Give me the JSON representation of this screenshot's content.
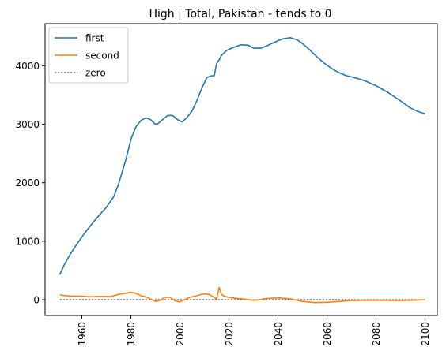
{
  "chart_data": {
    "type": "line",
    "title": "High | Total, Pakistan  - tends to 0",
    "xlabel": "",
    "ylabel": "",
    "xlim": [
      1945,
      2105
    ],
    "ylim": [
      -270,
      4720
    ],
    "x_ticks": [
      1960,
      1980,
      2000,
      2020,
      2040,
      2060,
      2080,
      2100
    ],
    "y_ticks": [
      0,
      1000,
      2000,
      3000,
      4000
    ],
    "grid": false,
    "legend_position": "top-left",
    "series": [
      {
        "name": "first",
        "color": "#1f77b4",
        "style": "solid",
        "x": [
          1951,
          1953,
          1955,
          1958,
          1961,
          1964,
          1967,
          1970,
          1973,
          1975,
          1978,
          1980,
          1982,
          1984,
          1986,
          1988,
          1990,
          1991,
          1993,
          1995,
          1997,
          1999,
          2001,
          2003,
          2005,
          2007,
          2009,
          2011,
          2013,
          2014,
          2015,
          2016,
          2017,
          2019,
          2021,
          2023,
          2025,
          2028,
          2030,
          2033,
          2036,
          2039,
          2042,
          2045,
          2048,
          2050,
          2053,
          2056,
          2059,
          2062,
          2065,
          2068,
          2071,
          2075,
          2080,
          2085,
          2090,
          2094,
          2097,
          2100
        ],
        "values": [
          430,
          610,
          760,
          950,
          1130,
          1290,
          1440,
          1580,
          1760,
          1980,
          2400,
          2740,
          2950,
          3060,
          3110,
          3080,
          3000,
          3010,
          3080,
          3150,
          3150,
          3080,
          3040,
          3120,
          3230,
          3410,
          3620,
          3800,
          3830,
          3830,
          4040,
          4100,
          4180,
          4260,
          4300,
          4330,
          4360,
          4350,
          4300,
          4300,
          4350,
          4410,
          4460,
          4480,
          4440,
          4380,
          4270,
          4150,
          4040,
          3950,
          3880,
          3830,
          3800,
          3750,
          3660,
          3540,
          3400,
          3280,
          3220,
          3180
        ]
      },
      {
        "name": "second",
        "color": "#ff7f0e",
        "style": "solid",
        "x": [
          1951,
          1953,
          1956,
          1960,
          1963,
          1966,
          1969,
          1972,
          1974,
          1976,
          1978,
          1980,
          1982,
          1984,
          1986,
          1988,
          1990,
          1992,
          1994,
          1996,
          1998,
          2000,
          2002,
          2004,
          2006,
          2008,
          2010,
          2012,
          2014,
          2015,
          2016,
          2017,
          2018,
          2020,
          2022,
          2025,
          2028,
          2030,
          2032,
          2035,
          2040,
          2045,
          2050,
          2055,
          2060,
          2065,
          2070,
          2080,
          2090,
          2095,
          2100
        ],
        "values": [
          80,
          70,
          60,
          60,
          50,
          55,
          55,
          55,
          80,
          100,
          110,
          125,
          110,
          70,
          50,
          10,
          -30,
          -10,
          40,
          40,
          -20,
          -40,
          0,
          40,
          60,
          80,
          100,
          90,
          40,
          10,
          210,
          90,
          60,
          40,
          25,
          15,
          0,
          -10,
          -5,
          20,
          30,
          15,
          -30,
          -50,
          -45,
          -30,
          -15,
          -10,
          -15,
          -10,
          0
        ]
      },
      {
        "name": "zero",
        "color": "#000000",
        "style": "dashed",
        "x": [
          1951,
          2100
        ],
        "values": [
          0,
          0
        ]
      }
    ]
  }
}
